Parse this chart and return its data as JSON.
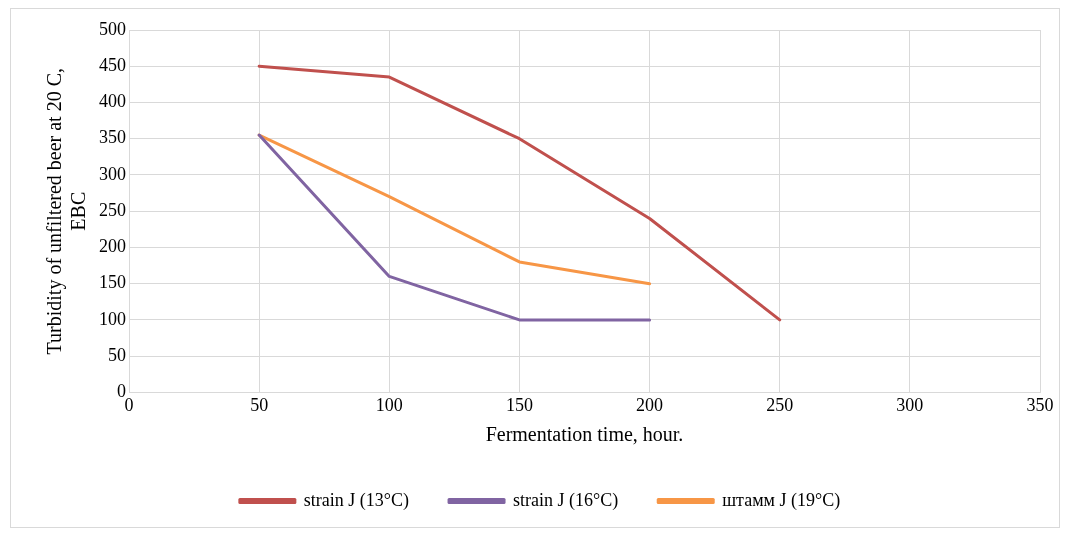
{
  "chart_data": {
    "type": "line",
    "xlabel": "Fermentation time, hour.",
    "ylabel": "Turbidity of unfiltered beer at 20 C, EBC",
    "xlim": [
      0,
      350
    ],
    "xticks": [
      0,
      50,
      100,
      150,
      200,
      250,
      300,
      350
    ],
    "ylim": [
      0,
      500
    ],
    "yticks": [
      0,
      50,
      100,
      150,
      200,
      250,
      300,
      350,
      400,
      450,
      500
    ],
    "grid": true,
    "legend": "bottom",
    "marker": "none",
    "line_style": "solid",
    "series": [
      {
        "name": "strain J (13°C)",
        "color": "#c0504d",
        "x": [
          50,
          100,
          150,
          200,
          250
        ],
        "values": [
          450,
          435,
          350,
          240,
          100
        ]
      },
      {
        "name": "strain J (16°C)",
        "color": "#8064a2",
        "x": [
          50,
          100,
          150,
          200
        ],
        "values": [
          355,
          160,
          100,
          100
        ]
      },
      {
        "name": "штамм J (19°C)",
        "color": "#f79646",
        "x": [
          50,
          100,
          150,
          200
        ],
        "values": [
          355,
          270,
          180,
          150
        ]
      }
    ]
  }
}
